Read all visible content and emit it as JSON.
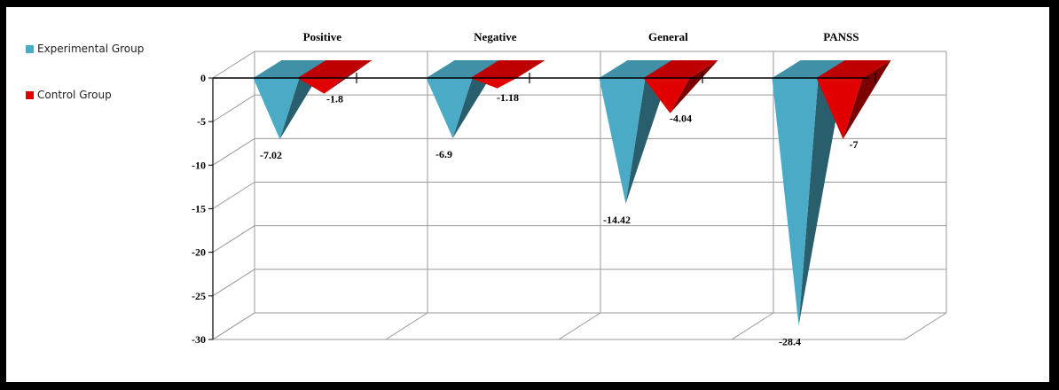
{
  "chart_data": {
    "type": "bar",
    "style": "3d-cone",
    "categories": [
      "Positive",
      "Negative",
      "General",
      "PANSS"
    ],
    "series": [
      {
        "name": "Experimental Group",
        "color": "#4BAAC6",
        "values": [
          -7.02,
          -6.9,
          -14.42,
          -28.4
        ]
      },
      {
        "name": "Control Group",
        "color": "#E00000",
        "values": [
          -1.8,
          -1.18,
          -4.04,
          -7
        ]
      }
    ],
    "value_labels": {
      "Experimental Group": [
        "-7.02",
        "-6.9",
        "-14.42",
        "-28.4"
      ],
      "Control Group": [
        "-1.8",
        "-1.18",
        "-4.04",
        "-7"
      ]
    },
    "ylim": [
      -30,
      0
    ],
    "yticks": [
      0,
      -5,
      -10,
      -15,
      -20,
      -25,
      -30
    ],
    "grid": true,
    "legend_position": "left"
  }
}
